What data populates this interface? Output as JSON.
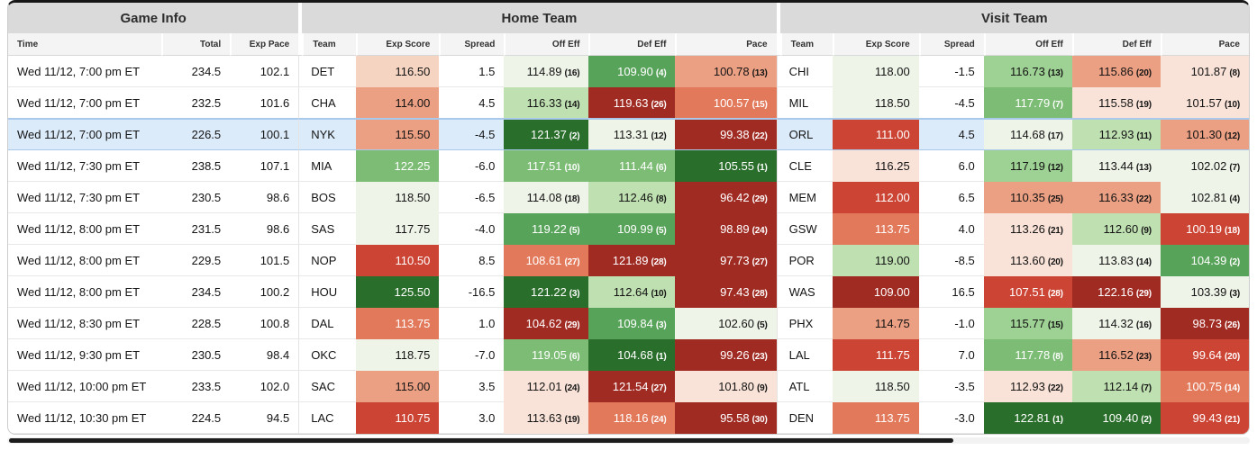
{
  "table": {
    "sections": [
      {
        "label": "Game Info",
        "cols": [
          "Time",
          "Total",
          "Exp Pace"
        ]
      },
      {
        "label": "Home Team",
        "cols": [
          "Team",
          "Exp Score",
          "Spread",
          "Off Eff",
          "Def Eff",
          "Pace"
        ]
      },
      {
        "label": "Visit Team",
        "cols": [
          "Team",
          "Exp Score",
          "Spread",
          "Off Eff",
          "Def Eff",
          "Pace"
        ]
      }
    ]
  },
  "palette": {
    "g1": {
      "bg": "#eef4e8",
      "fg": "#141414"
    },
    "g2": {
      "bg": "#bfe0b1",
      "fg": "#141414"
    },
    "g3": {
      "bg": "#9ed194",
      "fg": "#141414"
    },
    "g4": {
      "bg": "#7cbc75",
      "fg": "#ffffff"
    },
    "g5": {
      "bg": "#58a35a",
      "fg": "#ffffff"
    },
    "g6": {
      "bg": "#2a6e2b",
      "fg": "#ffffff"
    },
    "p1": {
      "bg": "#f9e3d8",
      "fg": "#141414"
    },
    "p2": {
      "bg": "#f6d4c2",
      "fg": "#141414"
    },
    "p3": {
      "bg": "#eca083",
      "fg": "#141414"
    },
    "p4": {
      "bg": "#e2795b",
      "fg": "#ffffff"
    },
    "p5": {
      "bg": "#cc4434",
      "fg": "#ffffff"
    },
    "p6": {
      "bg": "#a02b23",
      "fg": "#ffffff"
    }
  },
  "highlight": {
    "row_bg": "#dcebfa",
    "border": "#a9c9ec"
  },
  "rows": [
    {
      "time": "Wed 11/12, 7:00 pm ET",
      "total": "234.5",
      "pace": "102.1",
      "hl": false,
      "home": {
        "team": "DET",
        "exp": [
          "116.50",
          "p2"
        ],
        "spread": "1.5",
        "off": [
          "114.89",
          "16",
          "g1"
        ],
        "def": [
          "109.90",
          "4",
          "g5"
        ],
        "pc": [
          "100.78",
          "13",
          "p3"
        ]
      },
      "visit": {
        "team": "CHI",
        "exp": [
          "118.00",
          "g1"
        ],
        "spread": "-1.5",
        "off": [
          "116.73",
          "13",
          "g3"
        ],
        "def": [
          "115.86",
          "20",
          "p3"
        ],
        "pc": [
          "101.87",
          "8",
          "p1"
        ]
      }
    },
    {
      "time": "Wed 11/12, 7:00 pm ET",
      "total": "232.5",
      "pace": "101.6",
      "hl": false,
      "home": {
        "team": "CHA",
        "exp": [
          "114.00",
          "p3"
        ],
        "spread": "4.5",
        "off": [
          "116.33",
          "14",
          "g2"
        ],
        "def": [
          "119.63",
          "26",
          "p6"
        ],
        "pc": [
          "100.57",
          "15",
          "p4"
        ]
      },
      "visit": {
        "team": "MIL",
        "exp": [
          "118.50",
          "g1"
        ],
        "spread": "-4.5",
        "off": [
          "117.79",
          "7",
          "g4"
        ],
        "def": [
          "115.58",
          "19",
          "p1"
        ],
        "pc": [
          "101.57",
          "10",
          "p1"
        ]
      }
    },
    {
      "time": "Wed 11/12, 7:00 pm ET",
      "total": "226.5",
      "pace": "100.1",
      "hl": true,
      "home": {
        "team": "NYK",
        "exp": [
          "115.50",
          "p3"
        ],
        "spread": "-4.5",
        "off": [
          "121.37",
          "2",
          "g6"
        ],
        "def": [
          "113.31",
          "12",
          "g1"
        ],
        "pc": [
          "99.38",
          "22",
          "p6"
        ]
      },
      "visit": {
        "team": "ORL",
        "exp": [
          "111.00",
          "p5"
        ],
        "spread": "4.5",
        "off": [
          "114.68",
          "17",
          "g1"
        ],
        "def": [
          "112.93",
          "11",
          "g2"
        ],
        "pc": [
          "101.30",
          "12",
          "p3"
        ]
      }
    },
    {
      "time": "Wed 11/12, 7:30 pm ET",
      "total": "238.5",
      "pace": "107.1",
      "hl": false,
      "home": {
        "team": "MIA",
        "exp": [
          "122.25",
          "g4"
        ],
        "spread": "-6.0",
        "off": [
          "117.51",
          "10",
          "g4"
        ],
        "def": [
          "111.44",
          "6",
          "g4"
        ],
        "pc": [
          "105.55",
          "1",
          "g6"
        ]
      },
      "visit": {
        "team": "CLE",
        "exp": [
          "116.25",
          "p1"
        ],
        "spread": "6.0",
        "off": [
          "117.19",
          "12",
          "g3"
        ],
        "def": [
          "113.44",
          "13",
          "g1"
        ],
        "pc": [
          "102.02",
          "7",
          "g1"
        ]
      }
    },
    {
      "time": "Wed 11/12, 7:30 pm ET",
      "total": "230.5",
      "pace": "98.6",
      "hl": false,
      "home": {
        "team": "BOS",
        "exp": [
          "118.50",
          "g1"
        ],
        "spread": "-6.5",
        "off": [
          "114.08",
          "18",
          "g1"
        ],
        "def": [
          "112.46",
          "8",
          "g2"
        ],
        "pc": [
          "96.42",
          "29",
          "p6"
        ]
      },
      "visit": {
        "team": "MEM",
        "exp": [
          "112.00",
          "p5"
        ],
        "spread": "6.5",
        "off": [
          "110.35",
          "25",
          "p3"
        ],
        "def": [
          "116.33",
          "22",
          "p3"
        ],
        "pc": [
          "102.81",
          "4",
          "g1"
        ]
      }
    },
    {
      "time": "Wed 11/12, 8:00 pm ET",
      "total": "231.5",
      "pace": "98.6",
      "hl": false,
      "home": {
        "team": "SAS",
        "exp": [
          "117.75",
          "g1"
        ],
        "spread": "-4.0",
        "off": [
          "119.22",
          "5",
          "g5"
        ],
        "def": [
          "109.99",
          "5",
          "g5"
        ],
        "pc": [
          "98.89",
          "24",
          "p6"
        ]
      },
      "visit": {
        "team": "GSW",
        "exp": [
          "113.75",
          "p4"
        ],
        "spread": "4.0",
        "off": [
          "113.26",
          "21",
          "p1"
        ],
        "def": [
          "112.60",
          "9",
          "g2"
        ],
        "pc": [
          "100.19",
          "18",
          "p5"
        ]
      }
    },
    {
      "time": "Wed 11/12, 8:00 pm ET",
      "total": "229.5",
      "pace": "101.5",
      "hl": false,
      "home": {
        "team": "NOP",
        "exp": [
          "110.50",
          "p5"
        ],
        "spread": "8.5",
        "off": [
          "108.61",
          "27",
          "p4"
        ],
        "def": [
          "121.89",
          "28",
          "p6"
        ],
        "pc": [
          "97.73",
          "27",
          "p6"
        ]
      },
      "visit": {
        "team": "POR",
        "exp": [
          "119.00",
          "g2"
        ],
        "spread": "-8.5",
        "off": [
          "113.60",
          "20",
          "p1"
        ],
        "def": [
          "113.83",
          "14",
          "g1"
        ],
        "pc": [
          "104.39",
          "2",
          "g5"
        ]
      }
    },
    {
      "time": "Wed 11/12, 8:00 pm ET",
      "total": "234.5",
      "pace": "100.2",
      "hl": false,
      "home": {
        "team": "HOU",
        "exp": [
          "125.50",
          "g6"
        ],
        "spread": "-16.5",
        "off": [
          "121.22",
          "3",
          "g6"
        ],
        "def": [
          "112.64",
          "10",
          "g2"
        ],
        "pc": [
          "97.43",
          "28",
          "p6"
        ]
      },
      "visit": {
        "team": "WAS",
        "exp": [
          "109.00",
          "p6"
        ],
        "spread": "16.5",
        "off": [
          "107.51",
          "28",
          "p5"
        ],
        "def": [
          "122.16",
          "29",
          "p6"
        ],
        "pc": [
          "103.39",
          "3",
          "g1"
        ]
      }
    },
    {
      "time": "Wed 11/12, 8:30 pm ET",
      "total": "228.5",
      "pace": "100.8",
      "hl": false,
      "home": {
        "team": "DAL",
        "exp": [
          "113.75",
          "p4"
        ],
        "spread": "1.0",
        "off": [
          "104.62",
          "29",
          "p6"
        ],
        "def": [
          "109.84",
          "3",
          "g5"
        ],
        "pc": [
          "102.60",
          "5",
          "g1"
        ]
      },
      "visit": {
        "team": "PHX",
        "exp": [
          "114.75",
          "p3"
        ],
        "spread": "-1.0",
        "off": [
          "115.77",
          "15",
          "g3"
        ],
        "def": [
          "114.32",
          "16",
          "g1"
        ],
        "pc": [
          "98.73",
          "26",
          "p6"
        ]
      }
    },
    {
      "time": "Wed 11/12, 9:30 pm ET",
      "total": "230.5",
      "pace": "98.4",
      "hl": false,
      "home": {
        "team": "OKC",
        "exp": [
          "118.75",
          "g1"
        ],
        "spread": "-7.0",
        "off": [
          "119.05",
          "6",
          "g4"
        ],
        "def": [
          "104.68",
          "1",
          "g6"
        ],
        "pc": [
          "99.26",
          "23",
          "p6"
        ]
      },
      "visit": {
        "team": "LAL",
        "exp": [
          "111.75",
          "p5"
        ],
        "spread": "7.0",
        "off": [
          "117.78",
          "8",
          "g4"
        ],
        "def": [
          "116.52",
          "23",
          "p3"
        ],
        "pc": [
          "99.64",
          "20",
          "p5"
        ]
      }
    },
    {
      "time": "Wed 11/12, 10:00 pm ET",
      "total": "233.5",
      "pace": "102.0",
      "hl": false,
      "home": {
        "team": "SAC",
        "exp": [
          "115.00",
          "p3"
        ],
        "spread": "3.5",
        "off": [
          "112.01",
          "24",
          "p1"
        ],
        "def": [
          "121.54",
          "27",
          "p6"
        ],
        "pc": [
          "101.80",
          "9",
          "p1"
        ]
      },
      "visit": {
        "team": "ATL",
        "exp": [
          "118.50",
          "g1"
        ],
        "spread": "-3.5",
        "off": [
          "112.93",
          "22",
          "p1"
        ],
        "def": [
          "112.14",
          "7",
          "g2"
        ],
        "pc": [
          "100.75",
          "14",
          "p4"
        ]
      }
    },
    {
      "time": "Wed 11/12, 10:30 pm ET",
      "total": "224.5",
      "pace": "94.5",
      "hl": false,
      "home": {
        "team": "LAC",
        "exp": [
          "110.75",
          "p5"
        ],
        "spread": "3.0",
        "off": [
          "113.63",
          "19",
          "p1"
        ],
        "def": [
          "118.16",
          "24",
          "p4"
        ],
        "pc": [
          "95.58",
          "30",
          "p6"
        ]
      },
      "visit": {
        "team": "DEN",
        "exp": [
          "113.75",
          "p4"
        ],
        "spread": "-3.0",
        "off": [
          "122.81",
          "1",
          "g6"
        ],
        "def": [
          "109.40",
          "2",
          "g6"
        ],
        "pc": [
          "99.43",
          "21",
          "p5"
        ]
      }
    }
  ]
}
